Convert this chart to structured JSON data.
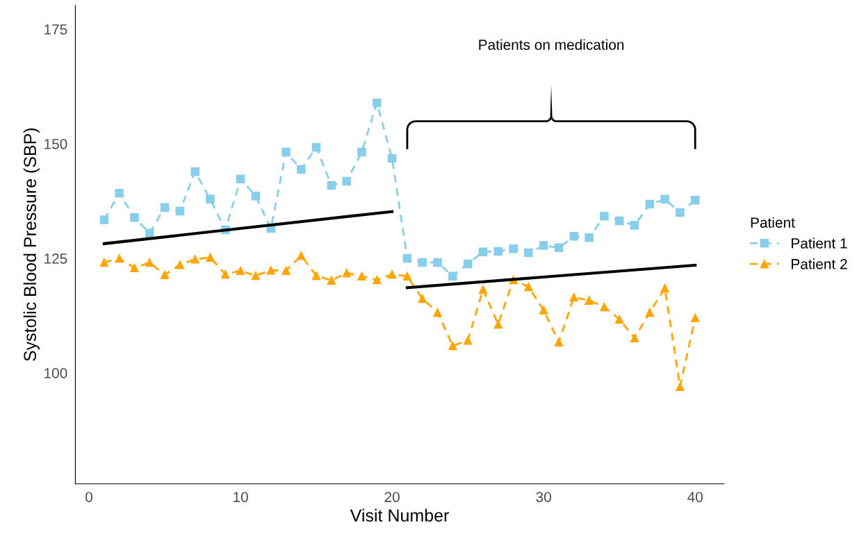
{
  "chart_data": {
    "type": "line",
    "xlabel": "Visit Number",
    "ylabel": "Systolic Blood Pressure (SBP)",
    "legend_title": "Patient",
    "x": [
      1,
      2,
      3,
      4,
      5,
      6,
      7,
      8,
      9,
      10,
      11,
      12,
      13,
      14,
      15,
      16,
      17,
      18,
      19,
      20,
      21,
      22,
      23,
      24,
      25,
      26,
      27,
      28,
      29,
      30,
      31,
      32,
      33,
      34,
      35,
      36,
      37,
      38,
      39,
      40
    ],
    "series": [
      {
        "name": "Patient 1",
        "color": "#87ceeb",
        "marker": "square",
        "line_style": "dashed",
        "values": [
          133.4,
          139.2,
          133.9,
          130.5,
          136.1,
          135.3,
          143.9,
          137.9,
          131.2,
          142.3,
          138.6,
          131.5,
          148.2,
          144.4,
          149.2,
          140.9,
          141.8,
          148.2,
          158.9,
          146.8,
          125.0,
          124.1,
          124.1,
          121.1,
          123.8,
          126.4,
          126.5,
          127.1,
          126.2,
          127.8,
          127.3,
          129.8,
          129.5,
          134.2,
          133.2,
          132.2,
          136.8,
          137.9,
          135.0,
          137.7
        ]
      },
      {
        "name": "Patient 2",
        "color": "#ffa500",
        "marker": "triangle",
        "line_style": "dashed",
        "values": [
          124.1,
          125.0,
          122.9,
          124.1,
          121.4,
          123.6,
          124.8,
          125.2,
          121.5,
          122.3,
          121.2,
          122.4,
          122.3,
          125.6,
          121.2,
          120.2,
          121.8,
          121.1,
          120.3,
          121.5,
          121.1,
          116.2,
          113.2,
          105.9,
          107.1,
          118.2,
          110.6,
          120.3,
          118.8,
          113.7,
          106.7,
          116.5,
          115.8,
          114.4,
          111.7,
          107.6,
          113.2,
          118.5,
          97.0,
          112.0
        ]
      },
      {
        "type": "line",
        "color": "#000000",
        "marker": "none",
        "line_style": "solid",
        "x": [
          1,
          20
        ],
        "values": [
          128.2,
          135.2
        ]
      },
      {
        "type": "line",
        "color": "#000000",
        "marker": "none",
        "line_style": "solid",
        "x": [
          21,
          40
        ],
        "values": [
          118.6,
          123.5
        ]
      }
    ],
    "annotations": [
      "Patients on medication"
    ],
    "xlim": [
      -0.9,
      41.9
    ],
    "ylim": [
      75.8,
      180.2
    ],
    "xticks": [
      0,
      10,
      20,
      30,
      40
    ],
    "yticks": [
      100,
      125,
      150,
      175
    ],
    "grid": false,
    "legend": "right"
  }
}
